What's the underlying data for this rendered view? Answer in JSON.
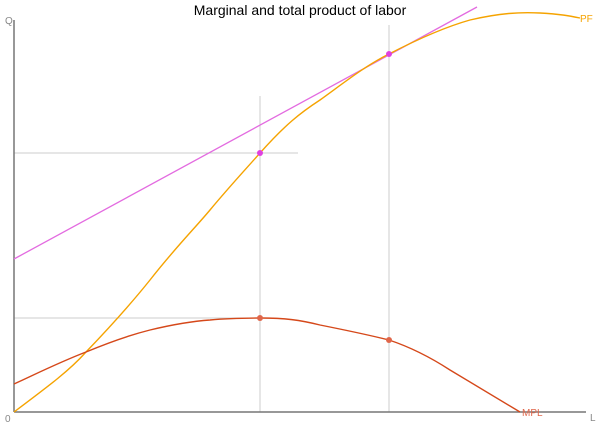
{
  "title": "Marginal and total product of labor",
  "axes": {
    "y_label": "Q",
    "x_label": "L",
    "origin_label": "0"
  },
  "curves": {
    "pf": {
      "label": "PF",
      "color": "#f5a300"
    },
    "mpl": {
      "label": "MPL",
      "color": "#d5481a"
    },
    "tangent": {
      "color": "#e36be0"
    }
  },
  "colors": {
    "axis": "#777777",
    "guide": "#cccccc",
    "point_pf": "#e040e0",
    "point_mpl": "#e0664a"
  }
}
